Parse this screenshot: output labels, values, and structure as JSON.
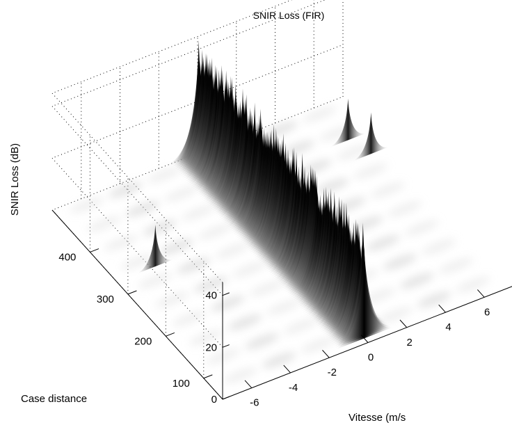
{
  "chart_data": {
    "type": "surface",
    "title": "SNIR Loss (FIR)",
    "xlabel": "Vitesse (m/s",
    "ylabel": "Case distance",
    "zlabel": "SNIR Loss (dB)",
    "x_ticks": [
      "-6",
      "-4",
      "-2",
      "0",
      "2",
      "4",
      "6"
    ],
    "y_ticks": [
      "100",
      "200",
      "300",
      "400"
    ],
    "z_ticks": [
      "0",
      "20",
      "40"
    ],
    "xlim": [
      -7.5,
      7.5
    ],
    "ylim": [
      50,
      500
    ],
    "zlim": [
      0,
      45
    ],
    "grid": true,
    "colormap": "gray",
    "features": [
      {
        "kind": "ridge",
        "velocity": 0,
        "distance_range": [
          60,
          500
        ],
        "peak_db": 45
      },
      {
        "kind": "peak",
        "velocity": -5.5,
        "distance": 330,
        "peak_db": 16
      },
      {
        "kind": "peak",
        "velocity": 6.2,
        "distance": 420,
        "peak_db": 16
      },
      {
        "kind": "peak",
        "velocity": 6.6,
        "distance": 380,
        "peak_db": 16
      }
    ]
  }
}
